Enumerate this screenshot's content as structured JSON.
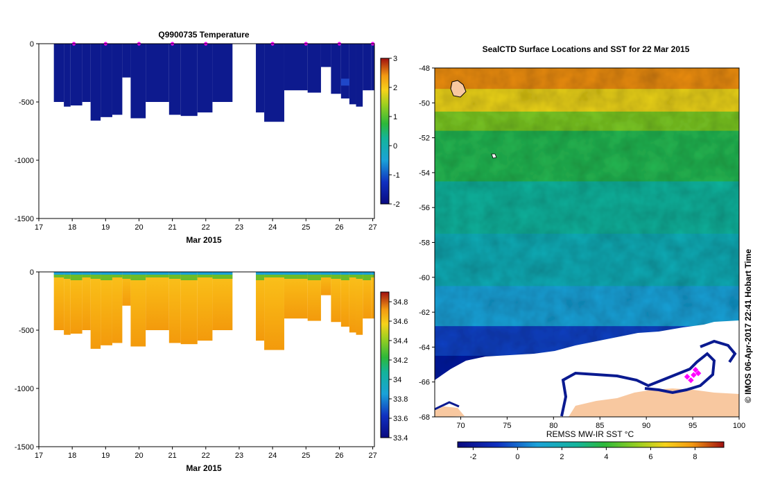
{
  "chart_data": [
    {
      "type": "heatmap",
      "title": "Q9900735  Temperature",
      "xlabel": "Mar 2015",
      "ylabel": "",
      "x_ticks": [
        "17",
        "18",
        "19",
        "20",
        "21",
        "22",
        "23",
        "24",
        "25",
        "26",
        "27"
      ],
      "y_ticks": [
        "0",
        "-500",
        "-1000",
        "-1500"
      ],
      "xlim": [
        17,
        27.05
      ],
      "ylim": [
        -1500,
        0
      ],
      "colorbar_ticks": [
        "3",
        "2",
        "1",
        "0",
        "-1",
        "-2"
      ],
      "colorbar_range": [
        -2,
        3
      ],
      "colors": {
        "profile_fill": "#0d1a8e",
        "marker": "#ff00ff"
      },
      "surface_markers_x": [
        18.05,
        19.0,
        20.0,
        21.0,
        22.0,
        24.0,
        25.0,
        26.0,
        27.0
      ],
      "profiles": [
        {
          "x0": 17.45,
          "x1": 17.75,
          "depth": 500
        },
        {
          "x0": 17.75,
          "x1": 17.95,
          "depth": 540
        },
        {
          "x0": 17.95,
          "x1": 18.3,
          "depth": 530
        },
        {
          "x0": 18.3,
          "x1": 18.55,
          "depth": 500
        },
        {
          "x0": 18.55,
          "x1": 18.85,
          "depth": 660
        },
        {
          "x0": 18.85,
          "x1": 19.2,
          "depth": 630
        },
        {
          "x0": 19.2,
          "x1": 19.5,
          "depth": 610
        },
        {
          "x0": 19.5,
          "x1": 19.75,
          "depth": 290
        },
        {
          "x0": 19.75,
          "x1": 20.2,
          "depth": 640
        },
        {
          "x0": 20.2,
          "x1": 20.9,
          "depth": 500
        },
        {
          "x0": 20.9,
          "x1": 21.25,
          "depth": 610
        },
        {
          "x0": 21.25,
          "x1": 21.75,
          "depth": 620
        },
        {
          "x0": 21.75,
          "x1": 22.2,
          "depth": 590
        },
        {
          "x0": 22.2,
          "x1": 22.8,
          "depth": 500
        },
        {
          "x0": 23.5,
          "x1": 23.75,
          "depth": 590
        },
        {
          "x0": 23.75,
          "x1": 24.35,
          "depth": 670
        },
        {
          "x0": 24.35,
          "x1": 25.05,
          "depth": 400
        },
        {
          "x0": 25.05,
          "x1": 25.45,
          "depth": 420
        },
        {
          "x0": 25.45,
          "x1": 25.75,
          "depth": 200
        },
        {
          "x0": 25.75,
          "x1": 26.05,
          "depth": 430
        },
        {
          "x0": 26.05,
          "x1": 26.3,
          "depth": 470
        },
        {
          "x0": 26.3,
          "x1": 26.5,
          "depth": 520
        },
        {
          "x0": 26.5,
          "x1": 26.7,
          "depth": 540
        },
        {
          "x0": 26.7,
          "x1": 26.95,
          "depth": 400
        },
        {
          "x0": 26.95,
          "x1": 27.05,
          "depth": 400
        }
      ]
    },
    {
      "type": "heatmap",
      "title": "",
      "xlabel": "Mar 2015",
      "ylabel": "",
      "x_ticks": [
        "17",
        "18",
        "19",
        "20",
        "21",
        "22",
        "23",
        "24",
        "25",
        "26",
        "27"
      ],
      "y_ticks": [
        "0",
        "-500",
        "-1000",
        "-1500"
      ],
      "xlim": [
        17,
        27.05
      ],
      "ylim": [
        -1500,
        0
      ],
      "colorbar_ticks": [
        "34.8",
        "34.6",
        "34.4",
        "34.2",
        "34",
        "33.8",
        "33.6",
        "33.4"
      ],
      "colorbar_range": [
        33.4,
        34.9
      ],
      "colors": {
        "deep": "#f3a10c",
        "mid": "#fac21c",
        "surface": "#1aa2d8",
        "subsurface": "#52bb2a"
      },
      "profiles": [
        {
          "x0": 17.45,
          "x1": 17.75,
          "depth": 500
        },
        {
          "x0": 17.75,
          "x1": 17.95,
          "depth": 540
        },
        {
          "x0": 17.95,
          "x1": 18.3,
          "depth": 530
        },
        {
          "x0": 18.3,
          "x1": 18.55,
          "depth": 500
        },
        {
          "x0": 18.55,
          "x1": 18.85,
          "depth": 660
        },
        {
          "x0": 18.85,
          "x1": 19.2,
          "depth": 630
        },
        {
          "x0": 19.2,
          "x1": 19.5,
          "depth": 610
        },
        {
          "x0": 19.5,
          "x1": 19.75,
          "depth": 290
        },
        {
          "x0": 19.75,
          "x1": 20.2,
          "depth": 640
        },
        {
          "x0": 20.2,
          "x1": 20.9,
          "depth": 500
        },
        {
          "x0": 20.9,
          "x1": 21.25,
          "depth": 610
        },
        {
          "x0": 21.25,
          "x1": 21.75,
          "depth": 620
        },
        {
          "x0": 21.75,
          "x1": 22.2,
          "depth": 590
        },
        {
          "x0": 22.2,
          "x1": 22.8,
          "depth": 500
        },
        {
          "x0": 23.5,
          "x1": 23.75,
          "depth": 590
        },
        {
          "x0": 23.75,
          "x1": 24.35,
          "depth": 670
        },
        {
          "x0": 24.35,
          "x1": 25.05,
          "depth": 400
        },
        {
          "x0": 25.05,
          "x1": 25.45,
          "depth": 420
        },
        {
          "x0": 25.45,
          "x1": 25.75,
          "depth": 200
        },
        {
          "x0": 25.75,
          "x1": 26.05,
          "depth": 430
        },
        {
          "x0": 26.05,
          "x1": 26.3,
          "depth": 470
        },
        {
          "x0": 26.3,
          "x1": 26.5,
          "depth": 520
        },
        {
          "x0": 26.5,
          "x1": 26.7,
          "depth": 540
        },
        {
          "x0": 26.7,
          "x1": 26.95,
          "depth": 400
        },
        {
          "x0": 26.95,
          "x1": 27.05,
          "depth": 400
        }
      ]
    },
    {
      "type": "heatmap",
      "title": "SealCTD Surface Locations and SST for 22 Mar 2015",
      "xlabel": "REMSS MW-IR SST °C",
      "ylabel": "",
      "x_ticks": [
        "70",
        "75",
        "80",
        "85",
        "90",
        "95",
        "100"
      ],
      "y_ticks": [
        "-48",
        "-50",
        "-52",
        "-54",
        "-56",
        "-58",
        "-60",
        "-62",
        "-64",
        "-66",
        "-68"
      ],
      "xlim": [
        67.2,
        100
      ],
      "ylim": [
        -68,
        -48
      ],
      "colorbar_ticks": [
        "-2",
        "0",
        "2",
        "4",
        "6",
        "8"
      ],
      "colorbar_range": [
        -2.7,
        9.3
      ],
      "sst_bands": [
        {
          "lat_top": -48,
          "lat_bottom": -49.2,
          "sst": 8.0
        },
        {
          "lat_top": -49.2,
          "lat_bottom": -50.5,
          "sst": 6.5
        },
        {
          "lat_top": -50.5,
          "lat_bottom": -51.6,
          "sst": 5.0
        },
        {
          "lat_top": -51.6,
          "lat_bottom": -54.5,
          "sst": 3.6
        },
        {
          "lat_top": -54.5,
          "lat_bottom": -57.5,
          "sst": 2.6
        },
        {
          "lat_top": -57.5,
          "lat_bottom": -60.5,
          "sst": 1.9
        },
        {
          "lat_top": -60.5,
          "lat_bottom": -62.8,
          "sst": 0.9
        },
        {
          "lat_top": -62.8,
          "lat_bottom": -64.5,
          "sst": -0.6
        },
        {
          "lat_top": -64.5,
          "lat_bottom": -68,
          "sst": -1.8
        }
      ],
      "seal_locations": [
        [
          95.1,
          -65.6
        ],
        [
          94.4,
          -65.7
        ],
        [
          95.3,
          -65.3
        ],
        [
          94.8,
          -65.9
        ],
        [
          95.6,
          -65.5
        ]
      ],
      "side_label": "© IMOS 06-Apr-2017 22:41 Hobart Time",
      "colors": {
        "ice": "#ffffff",
        "land": "#f8c8a0",
        "coast": "#0a1a90",
        "marker": "#ff00ff"
      }
    }
  ]
}
